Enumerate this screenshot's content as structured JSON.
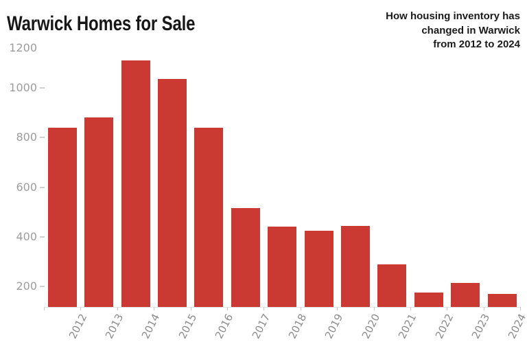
{
  "header": {
    "title": "Warwick Homes for Sale",
    "subtitle_lines": [
      "How housing inventory has",
      "changed in Warwick",
      "from 2012 to 2024"
    ]
  },
  "chart_data": {
    "type": "bar",
    "title": "Warwick Homes for Sale",
    "subtitle": "How housing inventory has changed in Warwick from 2012 to 2024",
    "categories": [
      "2012",
      "2013",
      "2014",
      "2015",
      "2016",
      "2017",
      "2018",
      "2019",
      "2020",
      "2021",
      "2022",
      "2023",
      "2024"
    ],
    "values": [
      835,
      875,
      1105,
      1030,
      835,
      510,
      435,
      420,
      440,
      285,
      170,
      210,
      165
    ],
    "xlabel": "",
    "ylabel": "",
    "yticks": [
      200,
      400,
      600,
      800,
      1000,
      1200
    ],
    "ylim": [
      112,
      1200
    ],
    "grid": false,
    "legend": false
  },
  "colors": {
    "background": "#ffffff",
    "title_text": "#171717",
    "subtitle_text": "#1a1a1a",
    "bar": "#ca3a33",
    "y_label": "#9c9c9c",
    "x_label": "#8c8c8c",
    "tick_dash": "#cfcfcf",
    "x_tick": "#c8c8c8",
    "baseline": "#e3e3e3"
  }
}
